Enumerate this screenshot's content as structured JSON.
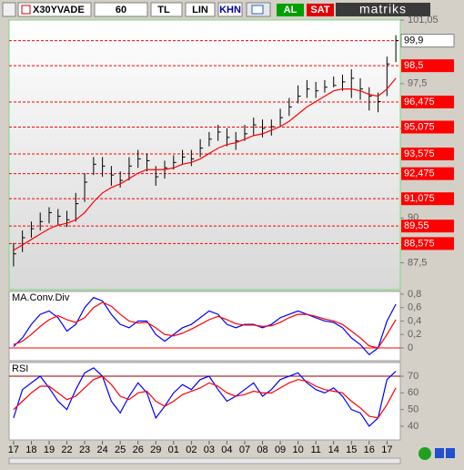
{
  "toolbar": {
    "symbol": "X30YVADE",
    "period": "60",
    "currency": "TL",
    "scale": "LIN",
    "mode": "KHN",
    "buy": "AL",
    "sell": "SAT",
    "brand": "matriks"
  },
  "chart_data": [
    {
      "type": "ohlc",
      "color": "#000000",
      "categories": [
        "17",
        null,
        "18",
        null,
        "19",
        null,
        "22",
        null,
        "23",
        null,
        "24",
        null,
        "25",
        null,
        "26",
        null,
        "29",
        null,
        "01",
        null,
        "02",
        null,
        "03",
        null,
        "04",
        null,
        "07",
        null,
        "08",
        null,
        "09",
        null,
        "10",
        null,
        "11",
        null,
        "14",
        null,
        "15",
        null,
        "16",
        null,
        "17",
        null
      ],
      "high": [
        88.6,
        89.3,
        89.8,
        90.3,
        90.6,
        90.5,
        90.4,
        91.4,
        92.5,
        93.4,
        93.4,
        92.9,
        92.6,
        93.4,
        93.8,
        93.6,
        92.9,
        93.2,
        93.5,
        93.8,
        93.8,
        94.4,
        94.8,
        95.2,
        95.0,
        94.8,
        95.2,
        95.6,
        95.5,
        95.5,
        96.1,
        96.7,
        97.4,
        97.7,
        97.6,
        97.7,
        97.9,
        98.0,
        98.3,
        97.8,
        97.3,
        97.0,
        99.0,
        100.2
      ],
      "low": [
        87.3,
        88.1,
        88.9,
        89.3,
        89.7,
        89.6,
        89.5,
        89.8,
        90.9,
        92.4,
        92.3,
        91.8,
        91.7,
        92.1,
        92.8,
        92.6,
        91.8,
        92.2,
        92.7,
        93.0,
        92.9,
        93.4,
        94.0,
        94.3,
        94.0,
        93.8,
        94.3,
        94.6,
        94.5,
        94.6,
        95.1,
        95.7,
        96.4,
        96.7,
        96.7,
        97.0,
        97.3,
        97.1,
        96.7,
        96.6,
        96.0,
        95.9,
        96.8,
        98.7
      ],
      "close": [
        88.0,
        88.9,
        89.4,
        89.8,
        90.3,
        90.1,
        89.9,
        90.8,
        92.0,
        93.0,
        92.9,
        92.4,
        92.1,
        92.9,
        93.3,
        93.2,
        92.3,
        92.8,
        93.1,
        93.4,
        93.3,
        93.9,
        94.4,
        94.8,
        94.5,
        94.3,
        94.7,
        95.2,
        95.0,
        95.1,
        95.6,
        96.2,
        96.8,
        97.2,
        97.1,
        97.3,
        97.4,
        97.6,
        97.8,
        97.2,
        96.8,
        96.5,
        98.6,
        99.9
      ],
      "overlay": {
        "color": "#ff0000",
        "values": [
          88.2,
          88.5,
          88.8,
          89.1,
          89.4,
          89.6,
          89.7,
          89.9,
          90.3,
          90.9,
          91.4,
          91.7,
          91.9,
          92.2,
          92.5,
          92.7,
          92.7,
          92.7,
          92.8,
          93.0,
          93.1,
          93.3,
          93.6,
          93.9,
          94.1,
          94.2,
          94.4,
          94.6,
          94.7,
          94.9,
          95.1,
          95.4,
          95.8,
          96.2,
          96.5,
          96.8,
          97.1,
          97.2,
          97.2,
          97.1,
          96.9,
          96.8,
          97.2,
          97.8
        ]
      },
      "ylim": [
        86.0,
        101.05
      ],
      "yticks": [
        {
          "value": 87.5,
          "label": "87,5"
        },
        {
          "value": 90,
          "label": "90,"
        },
        {
          "value": 95,
          "label": "95,"
        },
        {
          "value": 97.5,
          "label": "97,5"
        },
        {
          "value": 101.05,
          "label": "101,05"
        }
      ],
      "level_color": "#ff0000",
      "levels": [
        {
          "value": 98.5,
          "label": "98,5"
        },
        {
          "value": 96.475,
          "label": "96,475"
        },
        {
          "value": 95.075,
          "label": "95,075"
        },
        {
          "value": 93.575,
          "label": "93,575"
        },
        {
          "value": 92.475,
          "label": "92,475"
        },
        {
          "value": 91.075,
          "label": "91,075"
        },
        {
          "value": 89.55,
          "label": "89,55"
        },
        {
          "value": 88.575,
          "label": "88,575"
        }
      ],
      "last": {
        "value": 99.9,
        "label": "99,9"
      }
    },
    {
      "type": "line",
      "title": "MA.Conv.Div",
      "series": [
        {
          "color": "#0000ff",
          "values": [
            0.02,
            0.15,
            0.35,
            0.5,
            0.55,
            0.45,
            0.25,
            0.35,
            0.6,
            0.75,
            0.7,
            0.5,
            0.35,
            0.3,
            0.4,
            0.4,
            0.2,
            0.1,
            0.2,
            0.3,
            0.35,
            0.45,
            0.55,
            0.5,
            0.35,
            0.3,
            0.35,
            0.35,
            0.3,
            0.35,
            0.45,
            0.5,
            0.55,
            0.5,
            0.45,
            0.4,
            0.38,
            0.3,
            0.15,
            0.05,
            -0.1,
            0.0,
            0.4,
            0.65
          ]
        },
        {
          "color": "#ff0000",
          "values": [
            0.05,
            0.1,
            0.2,
            0.32,
            0.42,
            0.48,
            0.42,
            0.38,
            0.45,
            0.6,
            0.68,
            0.62,
            0.5,
            0.4,
            0.37,
            0.38,
            0.3,
            0.2,
            0.18,
            0.22,
            0.28,
            0.35,
            0.42,
            0.47,
            0.42,
            0.36,
            0.34,
            0.34,
            0.32,
            0.33,
            0.38,
            0.45,
            0.5,
            0.5,
            0.47,
            0.43,
            0.4,
            0.35,
            0.25,
            0.15,
            0.03,
            0.0,
            0.2,
            0.42
          ]
        }
      ],
      "ylim": [
        -0.19,
        0.84
      ],
      "yticks": [
        0,
        {
          "value": 0.2,
          "label": "0,2"
        },
        {
          "value": 0.4,
          "label": "0,4"
        },
        {
          "value": 0.6,
          "label": "0,6"
        },
        {
          "value": 0.8,
          "label": "0,8"
        }
      ],
      "hline": 0,
      "hline_color": "#ff0000"
    },
    {
      "type": "line",
      "title": "RSI",
      "series": [
        {
          "color": "#0000ff",
          "values": [
            45,
            62,
            66,
            70,
            63,
            55,
            50,
            62,
            72,
            75,
            70,
            55,
            48,
            58,
            66,
            60,
            45,
            52,
            60,
            65,
            62,
            68,
            70,
            62,
            55,
            58,
            62,
            66,
            58,
            62,
            68,
            70,
            72,
            66,
            62,
            60,
            63,
            58,
            50,
            48,
            40,
            45,
            68,
            73
          ]
        },
        {
          "color": "#ff0000",
          "values": [
            50,
            55,
            60,
            64,
            64,
            60,
            56,
            58,
            63,
            68,
            70,
            65,
            58,
            56,
            60,
            61,
            55,
            52,
            55,
            59,
            61,
            63,
            66,
            64,
            60,
            58,
            59,
            61,
            60,
            60,
            63,
            66,
            68,
            67,
            64,
            62,
            61,
            60,
            55,
            51,
            46,
            45,
            53,
            63
          ]
        }
      ],
      "ylim": [
        31.8,
        78.2
      ],
      "yticks": [
        40,
        50,
        60,
        70
      ],
      "hline": 70,
      "hline_color": "#8b0000"
    }
  ]
}
